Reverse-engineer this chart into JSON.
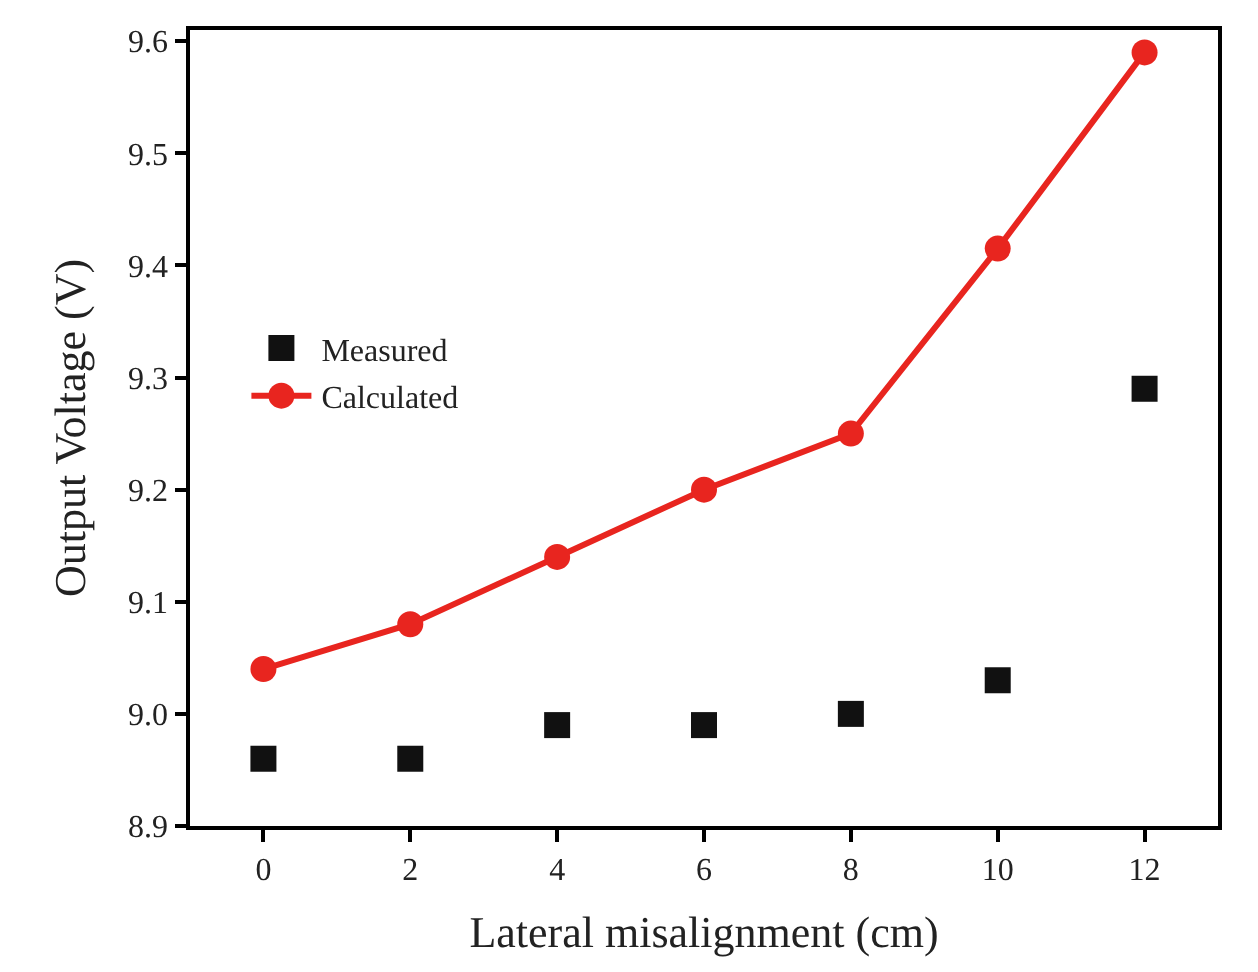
{
  "chart_data": {
    "type": "line",
    "xlabel": "Lateral misalignment (cm)",
    "ylabel": "Output Voltage (V)",
    "x": [
      0,
      2,
      4,
      6,
      8,
      10,
      12
    ],
    "series": [
      {
        "name": "Measured",
        "type": "scatter",
        "color": "#111111",
        "marker": "square",
        "values": [
          8.96,
          8.96,
          8.99,
          8.99,
          9.0,
          9.03,
          9.29
        ]
      },
      {
        "name": "Calculated",
        "color": "#e8251f",
        "marker": "circle",
        "line_style": "solid",
        "values": [
          9.04,
          9.08,
          9.14,
          9.2,
          9.25,
          9.415,
          9.59
        ]
      }
    ],
    "xlim": [
      -1,
      13
    ],
    "xticks": [
      0,
      2,
      4,
      6,
      8,
      10,
      12
    ],
    "ylim": [
      8.9,
      9.61
    ],
    "yticks": [
      8.9,
      {
        "value": 9.0,
        "label": "9.0"
      },
      9.1,
      9.2,
      9.3,
      9.4,
      9.5,
      9.6
    ],
    "grid": false,
    "legend": "left"
  }
}
